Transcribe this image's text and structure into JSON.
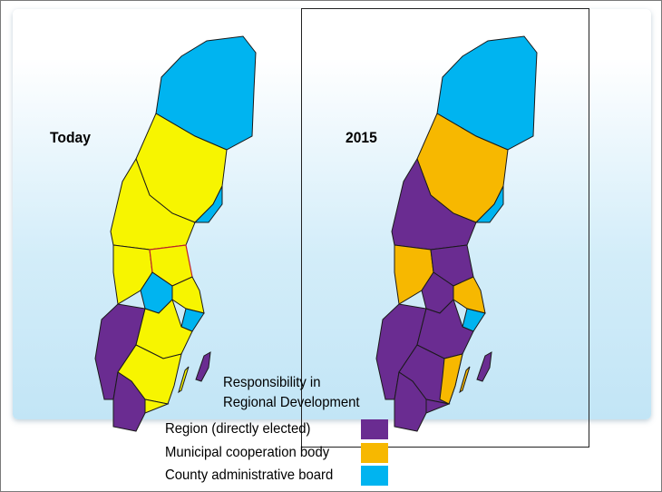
{
  "labels": {
    "left_map": "Today",
    "right_map": "2015"
  },
  "caption": {
    "line1": "Responsibility in",
    "line2": "Regional Development"
  },
  "legend": [
    {
      "label": "Region (directly elected)",
      "color": "#6a2c91"
    },
    {
      "label": "Municipal cooperation body",
      "color": "#f7b800"
    },
    {
      "label": "County administrative board",
      "color": "#00b4f0"
    }
  ],
  "colors": {
    "region": "#6a2c91",
    "cooperation": "#f7b800",
    "county_board": "#00b4f0",
    "today_cooperation": "#f7f500"
  }
}
